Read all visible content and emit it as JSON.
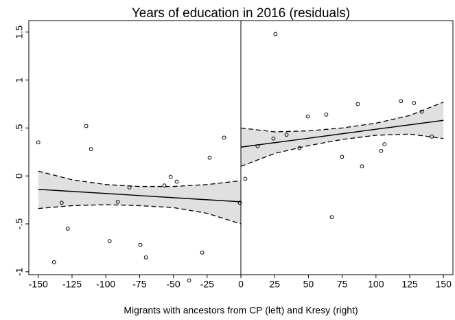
{
  "chart_data": {
    "type": "scatter",
    "title": "Years of education in 2016 (residuals)",
    "x_label": "Migrants with ancestors from CP (left) and Kresy (right)",
    "xlim": [
      -157,
      157
    ],
    "ylim": [
      -1.03,
      1.62
    ],
    "xticks": [
      -150,
      -125,
      -100,
      -75,
      -50,
      -25,
      0,
      25,
      50,
      75,
      100,
      125,
      150
    ],
    "yticks": [
      -1,
      {
        "value": -0.5,
        "label": "-.5"
      },
      0,
      {
        "value": 0.5,
        "label": ".5"
      },
      1,
      1.5
    ],
    "vline": 0,
    "points": {
      "x": [
        -150,
        -138.3,
        -132.7,
        -128.2,
        -114.5,
        -110.9,
        -97.2,
        -91.1,
        -82.5,
        -74.4,
        -70.3,
        -56.6,
        -52,
        -47.5,
        -38.3,
        -28.7,
        -23.1,
        -12.4,
        -0.8,
        3.3,
        12.4,
        24.1,
        25.6,
        33.8,
        43.4,
        49.5,
        63.2,
        67.3,
        74.9,
        86.5,
        89.6,
        103.8,
        106.3,
        118.5,
        128.2,
        133.8,
        141.4
      ],
      "y": [
        0.35,
        -0.9,
        -0.28,
        -0.55,
        0.52,
        0.28,
        -0.68,
        -0.27,
        -0.12,
        -0.72,
        -0.85,
        -0.1,
        -0.01,
        -0.06,
        -1.09,
        -0.8,
        0.19,
        0.4,
        -0.28,
        -0.03,
        0.31,
        0.39,
        1.48,
        0.43,
        0.29,
        0.62,
        0.64,
        -0.43,
        0.2,
        0.75,
        0.1,
        0.26,
        0.33,
        0.78,
        0.76,
        0.67,
        0.41
      ]
    },
    "fits": [
      {
        "x": [
          -150,
          -125,
          -100,
          -75,
          -50,
          -25,
          0
        ],
        "y": [
          -0.14,
          -0.162,
          -0.183,
          -0.205,
          -0.227,
          -0.248,
          -0.27
        ],
        "upper": [
          0.05,
          -0.04,
          -0.09,
          -0.11,
          -0.11,
          -0.09,
          -0.05
        ],
        "lower": [
          -0.34,
          -0.31,
          -0.3,
          -0.31,
          -0.33,
          -0.39,
          -0.5
        ]
      },
      {
        "x": [
          0,
          25,
          50,
          75,
          100,
          125,
          150
        ],
        "y": [
          0.3,
          0.347,
          0.393,
          0.44,
          0.487,
          0.533,
          0.58
        ],
        "upper": [
          0.5,
          0.46,
          0.47,
          0.5,
          0.55,
          0.63,
          0.77
        ],
        "lower": [
          0.1,
          0.234,
          0.316,
          0.38,
          0.424,
          0.436,
          0.39
        ]
      }
    ]
  }
}
